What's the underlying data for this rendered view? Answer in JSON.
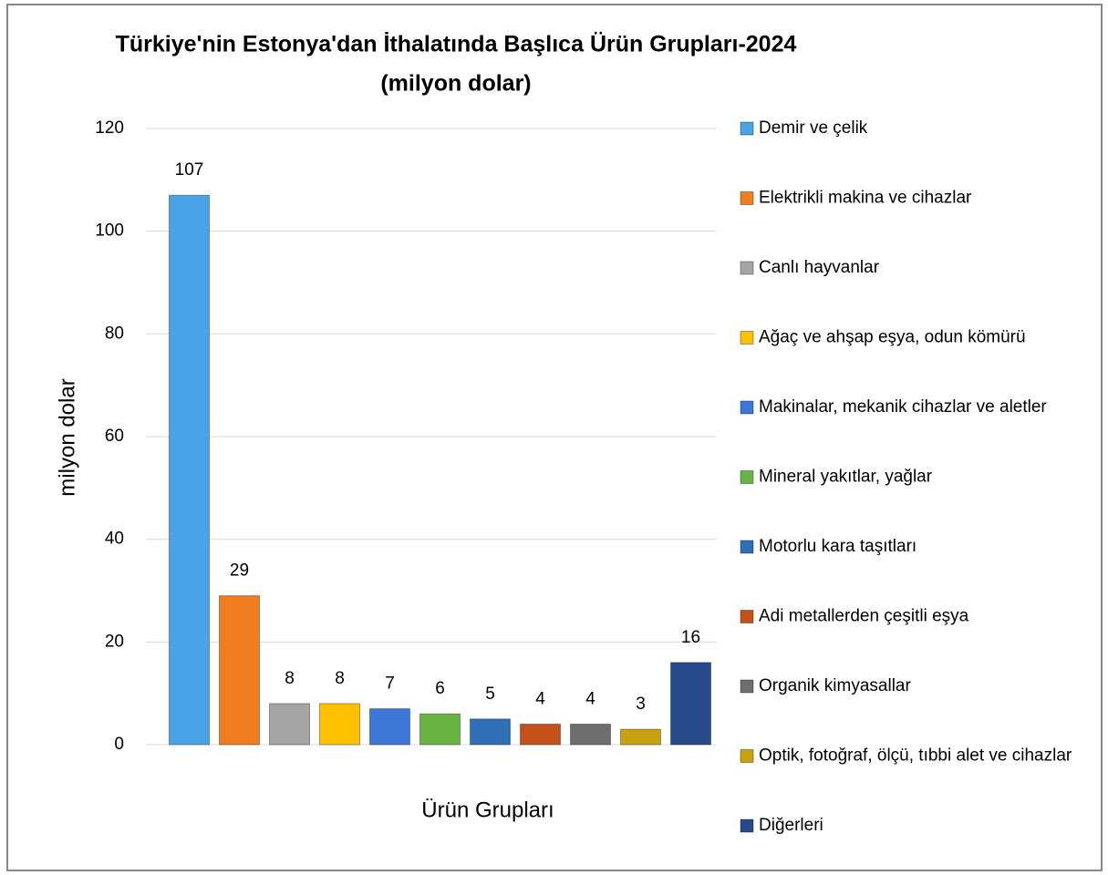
{
  "chart_data": {
    "type": "bar",
    "title": "Türkiye'nin Estonya'dan İthalatında Başlıca Ürün Grupları-2024",
    "subtitle": "(milyon dolar)",
    "x_label": "Ürün Grupları",
    "y_label": "milyon dolar",
    "ylim": [
      0,
      120
    ],
    "yticks": [
      0,
      20,
      40,
      60,
      80,
      100,
      120
    ],
    "grid": true,
    "legend": "right",
    "series": [
      {
        "name": "Demir ve çelik",
        "color": "#4aa3e6",
        "values": [
          107
        ]
      },
      {
        "name": "Elektrikli makina ve cihazlar",
        "color": "#f07d1e",
        "values": [
          29
        ]
      },
      {
        "name": "Canlı hayvanlar",
        "color": "#a5a5a5",
        "values": [
          8
        ]
      },
      {
        "name": "Ağaç ve ahşap eşya, odun kömürü",
        "color": "#ffc000",
        "values": [
          8
        ]
      },
      {
        "name": "Makinalar, mekanik cihazlar ve aletler",
        "color": "#3d78d8",
        "values": [
          7
        ]
      },
      {
        "name": "Mineral yakıtlar, yağlar",
        "color": "#6ab445",
        "values": [
          6
        ]
      },
      {
        "name": "Motorlu kara taşıtları",
        "color": "#2f6fb5",
        "values": [
          5
        ]
      },
      {
        "name": "Adi metallerden çeşitli eşya",
        "color": "#c4501a",
        "values": [
          4
        ]
      },
      {
        "name": "Organik kimyasallar",
        "color": "#6e6e6e",
        "values": [
          4
        ]
      },
      {
        "name": "Optik, fotoğraf, ölçü, tıbbi alet ve cihazlar",
        "color": "#c9a10e",
        "values": [
          3
        ]
      },
      {
        "name": "Diğerleri",
        "color": "#264a8a",
        "values": [
          16
        ]
      }
    ]
  }
}
